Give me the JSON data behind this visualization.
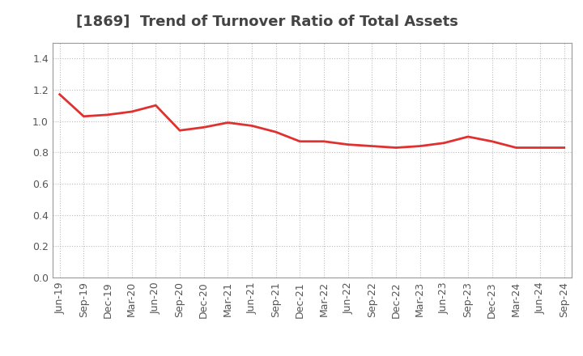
{
  "title": "[1869]  Trend of Turnover Ratio of Total Assets",
  "x_labels": [
    "Jun-19",
    "Sep-19",
    "Dec-19",
    "Mar-20",
    "Jun-20",
    "Sep-20",
    "Dec-20",
    "Mar-21",
    "Jun-21",
    "Sep-21",
    "Dec-21",
    "Mar-22",
    "Jun-22",
    "Sep-22",
    "Dec-22",
    "Mar-23",
    "Jun-23",
    "Sep-23",
    "Dec-23",
    "Mar-24",
    "Jun-24",
    "Sep-24"
  ],
  "y_values": [
    1.17,
    1.03,
    1.04,
    1.06,
    1.1,
    0.94,
    0.96,
    0.99,
    0.97,
    0.93,
    0.87,
    0.87,
    0.85,
    0.84,
    0.83,
    0.84,
    0.86,
    0.9,
    0.87,
    0.83,
    0.83,
    0.83
  ],
  "line_color": "#e03030",
  "background_color": "#ffffff",
  "grid_color": "#bbbbbb",
  "ylim": [
    0.0,
    1.5
  ],
  "yticks": [
    0.0,
    0.2,
    0.4,
    0.6,
    0.8,
    1.0,
    1.2,
    1.4
  ],
  "title_color": "#444444",
  "title_fontsize": 13,
  "tick_fontsize": 9,
  "tick_color": "#555555",
  "spine_color": "#999999"
}
